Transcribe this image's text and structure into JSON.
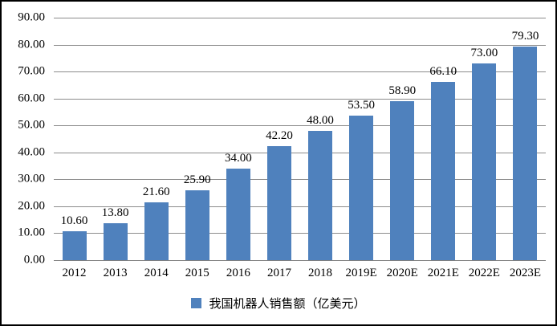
{
  "chart_data": {
    "type": "bar",
    "categories": [
      "2012",
      "2013",
      "2014",
      "2015",
      "2016",
      "2017",
      "2018",
      "2019E",
      "2020E",
      "2021E",
      "2022E",
      "2023E"
    ],
    "values": [
      10.6,
      13.8,
      21.6,
      25.9,
      34.0,
      42.2,
      48.0,
      53.5,
      58.9,
      66.1,
      73.0,
      79.3
    ],
    "value_labels": [
      "10.60",
      "13.80",
      "21.60",
      "25.90",
      "34.00",
      "42.20",
      "48.00",
      "53.50",
      "58.90",
      "66.10",
      "73.00",
      "79.30"
    ],
    "title": "",
    "xlabel": "",
    "ylabel": "",
    "ylim": [
      0,
      90
    ],
    "ytick_step": 10,
    "ytick_labels": [
      "0.00",
      "10.00",
      "20.00",
      "30.00",
      "40.00",
      "50.00",
      "60.00",
      "70.00",
      "80.00",
      "90.00"
    ],
    "grid": true,
    "legend": "我国机器人销售额（亿美元）",
    "legend_position": "bottom",
    "bar_color": "#4F81BD",
    "gridline_color": "#8C8C8C",
    "axis_line_color": "#7F7F7F",
    "text_color": "#000000",
    "background_color": "#FFFFFF",
    "border_color": "#000000"
  }
}
